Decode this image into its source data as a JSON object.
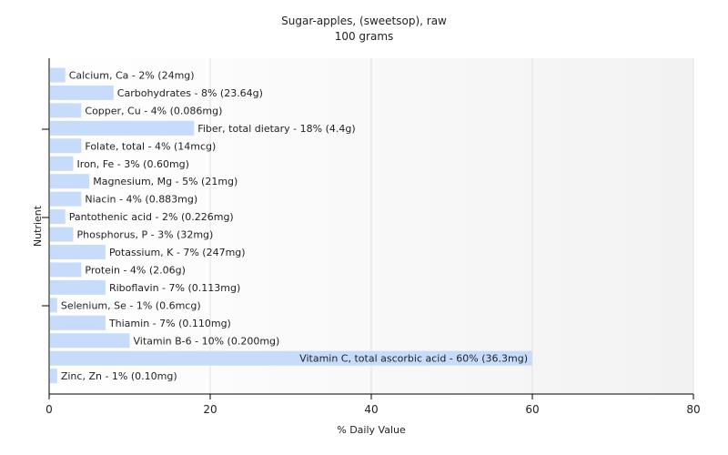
{
  "chart_data": {
    "type": "bar",
    "orientation": "horizontal",
    "title": "Sugar-apples, (sweetsop), raw",
    "subtitle": "100 grams",
    "xlabel": "% Daily Value",
    "ylabel": "Nutrient",
    "xlim": [
      0,
      80
    ],
    "xticks": [
      0,
      20,
      40,
      60,
      80
    ],
    "grid": true,
    "bar_color": "#c6dcfa",
    "categories": [
      "Calcium, Ca",
      "Carbohydrates",
      "Copper, Cu",
      "Fiber, total dietary",
      "Folate, total",
      "Iron, Fe",
      "Magnesium, Mg",
      "Niacin",
      "Pantothenic acid",
      "Phosphorus, P",
      "Potassium, K",
      "Protein",
      "Riboflavin",
      "Selenium, Se",
      "Thiamin",
      "Vitamin B-6",
      "Vitamin C, total ascorbic acid",
      "Zinc, Zn"
    ],
    "values": [
      2,
      8,
      4,
      18,
      4,
      3,
      5,
      4,
      2,
      3,
      7,
      4,
      7,
      1,
      7,
      10,
      60,
      1
    ],
    "labels": [
      "Calcium, Ca - 2% (24mg)",
      "Carbohydrates - 8% (23.64g)",
      "Copper, Cu - 4% (0.086mg)",
      "Fiber, total dietary - 18% (4.4g)",
      "Folate, total - 4% (14mcg)",
      "Iron, Fe - 3% (0.60mg)",
      "Magnesium, Mg - 5% (21mg)",
      "Niacin - 4% (0.883mg)",
      "Pantothenic acid - 2% (0.226mg)",
      "Phosphorus, P - 3% (32mg)",
      "Potassium, K - 7% (247mg)",
      "Protein - 4% (2.06g)",
      "Riboflavin - 7% (0.113mg)",
      "Selenium, Se - 1% (0.6mcg)",
      "Thiamin - 7% (0.110mg)",
      "Vitamin B-6 - 10% (0.200mg)",
      "Vitamin C, total ascorbic acid - 60% (36.3mg)",
      "Zinc, Zn - 1% (0.10mg)"
    ]
  }
}
